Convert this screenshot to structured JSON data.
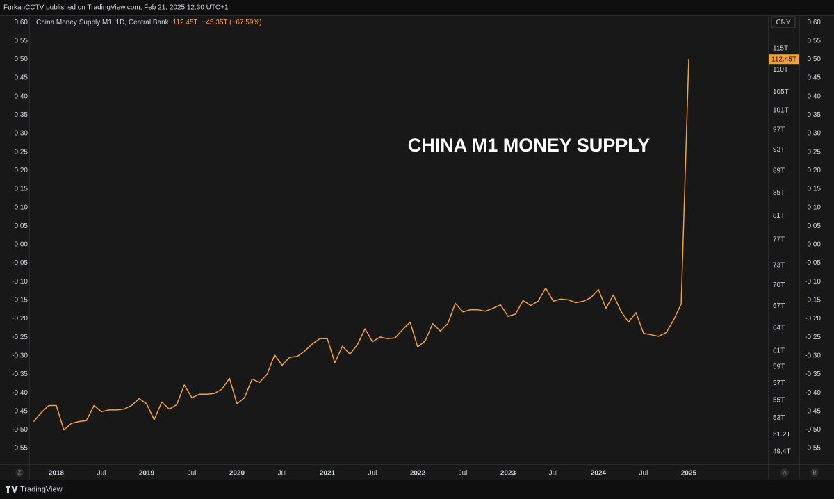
{
  "header": {
    "text": "FurkanCCTV published on TradingView.com, Feb 21, 2025 12:30 UTC+1"
  },
  "footer": {
    "brand": "TradingView"
  },
  "controls": {
    "left": "Z",
    "auto": "A",
    "right": "B",
    "currency": "CNY"
  },
  "chart_data": {
    "type": "line",
    "annotation": "CHINA M1 MONEY SUPPLY",
    "legend_change": "+45.35T (+67.59%)",
    "categories": [
      null,
      null,
      null,
      "2018",
      null,
      null,
      null,
      null,
      null,
      "Jul",
      null,
      null,
      null,
      null,
      null,
      "2019",
      null,
      null,
      null,
      null,
      null,
      "Jul",
      null,
      null,
      null,
      null,
      null,
      "2020",
      null,
      null,
      null,
      null,
      null,
      "Jul",
      null,
      null,
      null,
      null,
      null,
      "2021",
      null,
      null,
      null,
      null,
      null,
      "Jul",
      null,
      null,
      null,
      null,
      null,
      "2022",
      null,
      null,
      null,
      null,
      null,
      "Jul",
      null,
      null,
      null,
      null,
      null,
      "2023",
      null,
      null,
      null,
      null,
      null,
      "Jul",
      null,
      null,
      null,
      null,
      null,
      "2024",
      null,
      null,
      null,
      null,
      null,
      "Jul",
      null,
      null,
      null,
      null,
      null,
      "2025"
    ],
    "series": [
      {
        "name": "China Money Supply M1, 1D, Central Bank",
        "color": "#f7a035",
        "axis": "y2",
        "values": [
          52.6,
          53.6,
          54.4,
          54.4,
          51.7,
          52.4,
          52.6,
          52.7,
          54.4,
          53.7,
          53.9,
          53.9,
          54.0,
          54.4,
          55.2,
          54.6,
          52.8,
          54.8,
          54.0,
          54.5,
          56.8,
          55.3,
          55.7,
          55.7,
          55.8,
          56.3,
          57.6,
          54.6,
          55.3,
          57.5,
          57.1,
          58.1,
          60.5,
          59.2,
          60.2,
          60.3,
          61.0,
          61.9,
          62.6,
          62.6,
          59.5,
          61.6,
          60.6,
          61.8,
          63.9,
          62.2,
          62.8,
          62.6,
          62.7,
          63.8,
          64.8,
          61.5,
          62.3,
          64.6,
          63.6,
          64.6,
          67.4,
          66.2,
          66.5,
          66.5,
          66.3,
          66.7,
          67.2,
          65.6,
          65.9,
          67.8,
          67.1,
          67.7,
          69.6,
          67.7,
          68.0,
          67.9,
          67.5,
          67.7,
          68.2,
          69.4,
          66.7,
          68.6,
          66.3,
          64.8,
          66.1,
          63.3,
          63.1,
          62.9,
          63.4,
          65.1,
          67.3,
          112.45
        ],
        "value_labels": [
          null,
          null,
          null,
          null,
          null,
          null,
          null,
          null,
          null,
          null,
          null,
          null,
          null,
          null,
          null,
          null,
          null,
          null,
          null,
          null,
          null,
          null,
          null,
          null,
          null,
          null,
          null,
          null,
          null,
          null,
          null,
          null,
          null,
          null,
          null,
          null,
          null,
          null,
          null,
          null,
          null,
          null,
          null,
          null,
          null,
          null,
          null,
          null,
          null,
          null,
          null,
          null,
          null,
          null,
          null,
          null,
          null,
          null,
          null,
          null,
          null,
          null,
          null,
          null,
          null,
          null,
          null,
          null,
          null,
          null,
          null,
          null,
          null,
          null,
          null,
          null,
          null,
          null,
          null,
          null,
          null,
          null,
          null,
          null,
          null,
          null,
          null,
          "112.45T"
        ]
      }
    ],
    "ylim": [
      -0.593,
      0.619
    ],
    "yticks": [
      {
        "value": 0.6,
        "label": "0.60"
      },
      0.55,
      {
        "value": 0.5,
        "label": "0.50"
      },
      0.45,
      {
        "value": 0.4,
        "label": "0.40"
      },
      0.35,
      {
        "value": 0.3,
        "label": "0.30"
      },
      0.25,
      {
        "value": 0.2,
        "label": "0.20"
      },
      0.15,
      {
        "value": 0.1,
        "label": "0.10"
      },
      0.05,
      {
        "value": 0,
        "label": "0.00"
      },
      {
        "value": -0.05,
        "label": "-0.05"
      },
      {
        "value": -0.1,
        "label": "-0.10"
      },
      -0.15,
      {
        "value": -0.2,
        "label": "-0.20"
      },
      -0.25,
      {
        "value": -0.3,
        "label": "-0.30"
      },
      -0.35,
      {
        "value": -0.4,
        "label": "-0.40"
      },
      -0.45,
      {
        "value": -0.5,
        "label": "-0.50"
      },
      -0.55
    ],
    "y2lim": [
      48.1,
      123.3
    ],
    "y2scale": "log",
    "y2ticks": [
      {
        "value": 115,
        "label": "115T"
      },
      {
        "value": 110,
        "label": "110T"
      },
      {
        "value": 105,
        "label": "105T"
      },
      {
        "value": 101,
        "label": "101T"
      },
      {
        "value": 97,
        "label": "97T"
      },
      {
        "value": 93,
        "label": "93T"
      },
      {
        "value": 89,
        "label": "89T"
      },
      {
        "value": 85,
        "label": "85T"
      },
      {
        "value": 81,
        "label": "81T"
      },
      {
        "value": 77,
        "label": "77T"
      },
      {
        "value": 73,
        "label": "73T"
      },
      {
        "value": 70,
        "label": "70T"
      },
      {
        "value": 67,
        "label": "67T"
      },
      {
        "value": 64,
        "label": "64T"
      },
      {
        "value": 61,
        "label": "61T"
      },
      {
        "value": 59,
        "label": "59T"
      },
      {
        "value": 57,
        "label": "57T"
      },
      {
        "value": 55,
        "label": "55T"
      },
      {
        "value": 53,
        "label": "53T"
      },
      {
        "value": 51.2,
        "label": "51.2T"
      },
      {
        "value": 49.4,
        "label": "49.4T"
      }
    ],
    "grid": false
  }
}
